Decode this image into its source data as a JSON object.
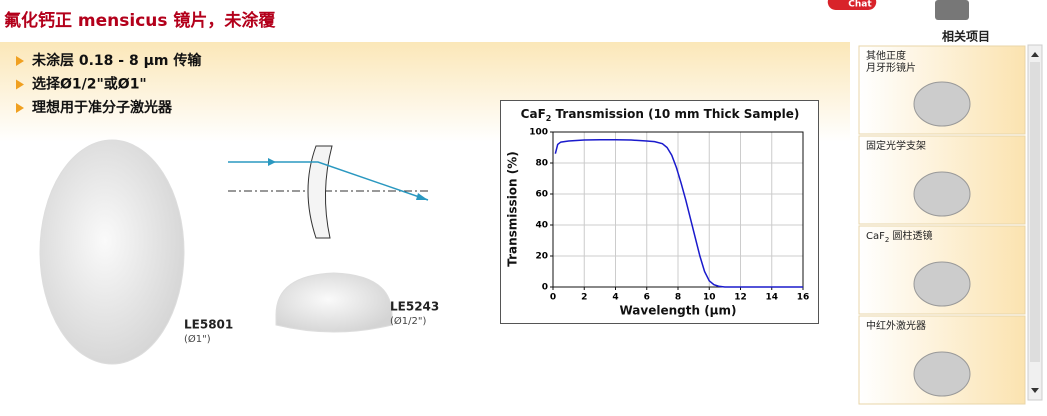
{
  "header": {
    "title": "氟化钙正 mensicus 镜片，未涂覆",
    "chat": "Chat",
    "related": "相关项目"
  },
  "bullets": [
    "未涂层 0.18 - 8 µm 传输",
    "选择Ø1/2\"或Ø1\"",
    "理想用于准分子激光器"
  ],
  "products": [
    {
      "part": "LE5801",
      "size": "(Ø1\")"
    },
    {
      "part": "LE5243",
      "size": "(Ø1/2\")"
    }
  ],
  "chart": {
    "type": "line",
    "title": [
      "CaF",
      "2",
      " Transmission (10 mm Thick Sample)"
    ],
    "xlabel": "Wavelength (µm)",
    "ylabel": "Transmission (%)",
    "xlim": [
      0,
      16
    ],
    "xticks": [
      0,
      2,
      4,
      6,
      8,
      10,
      12,
      14,
      16
    ],
    "ylim": [
      0,
      100
    ],
    "yticks": [
      0,
      20,
      40,
      60,
      80,
      100
    ],
    "grid": true,
    "series": [
      {
        "color": "#1a1acc",
        "x": [
          0.15,
          0.3,
          0.5,
          1,
          2,
          3,
          4,
          5,
          6,
          6.5,
          7,
          7.3,
          7.6,
          7.9,
          8.2,
          8.5,
          8.8,
          9.1,
          9.4,
          9.7,
          10,
          10.3,
          10.6,
          11,
          12,
          14,
          16
        ],
        "values": [
          86,
          92,
          93.5,
          94.2,
          94.8,
          95,
          95,
          94.8,
          94.2,
          93.8,
          92.5,
          90,
          85,
          77,
          67,
          56,
          44,
          32,
          20,
          10,
          4,
          1.5,
          0.5,
          0,
          0,
          0,
          0
        ]
      }
    ]
  },
  "sidebar": [
    {
      "label": [
        "其他正度",
        "月牙形镜片"
      ]
    },
    {
      "label": [
        "固定光学支架"
      ]
    },
    {
      "label": [
        "CaF",
        "2",
        " 圆柱透镜"
      ]
    },
    {
      "label": [
        "中红外激光器"
      ]
    }
  ]
}
